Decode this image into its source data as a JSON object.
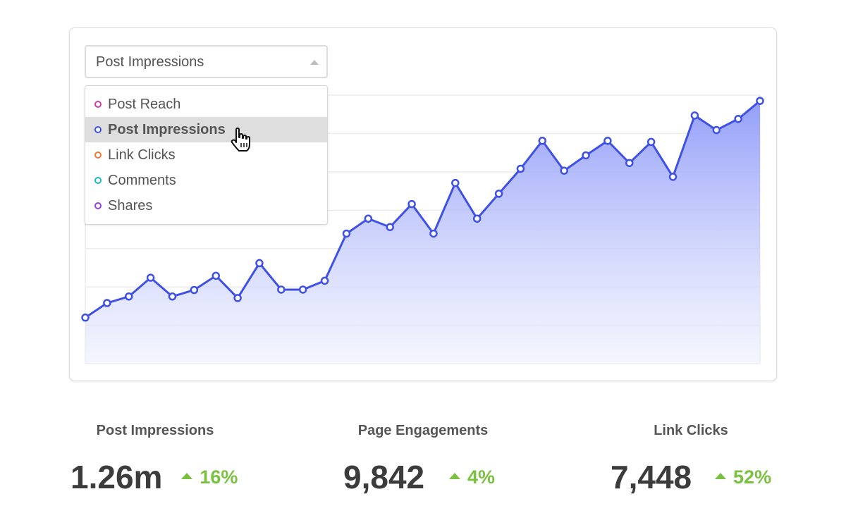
{
  "dropdown": {
    "selected_label": "Post Impressions",
    "options": [
      {
        "label": "Post Reach",
        "color": "#c83fb0"
      },
      {
        "label": "Post Impressions",
        "color": "#3f51e5"
      },
      {
        "label": "Link Clicks",
        "color": "#f07a3a"
      },
      {
        "label": "Comments",
        "color": "#1fb8c9"
      },
      {
        "label": "Shares",
        "color": "#9b3fd8"
      }
    ],
    "highlighted_index": 1
  },
  "chart_data": {
    "type": "area",
    "series": [
      {
        "values": [
          12,
          15.8,
          17.5,
          22.4,
          17.5,
          19.2,
          22.9,
          17.1,
          26.2,
          19.3,
          19.3,
          21.6,
          33.9,
          37.8,
          35.6,
          41.6,
          33.9,
          47.1,
          37.8,
          44.3,
          50.8,
          58.1,
          50.3,
          54.3,
          58.1,
          52.3,
          57.8,
          48.7,
          64.7,
          60.9,
          63.8,
          68.5
        ]
      }
    ],
    "ylim": [
      0,
      70
    ],
    "grid": true,
    "color": "#3f51e5"
  },
  "stats": [
    {
      "label": "Post Impressions",
      "value": "1.26m",
      "change": "16%"
    },
    {
      "label": "Page Engagements",
      "value": "9,842",
      "change": "4%"
    },
    {
      "label": "Link Clicks",
      "value": "7,448",
      "change": "52%"
    }
  ],
  "colors": {
    "accent": "#3f51e5",
    "positive": "#7ac142"
  }
}
